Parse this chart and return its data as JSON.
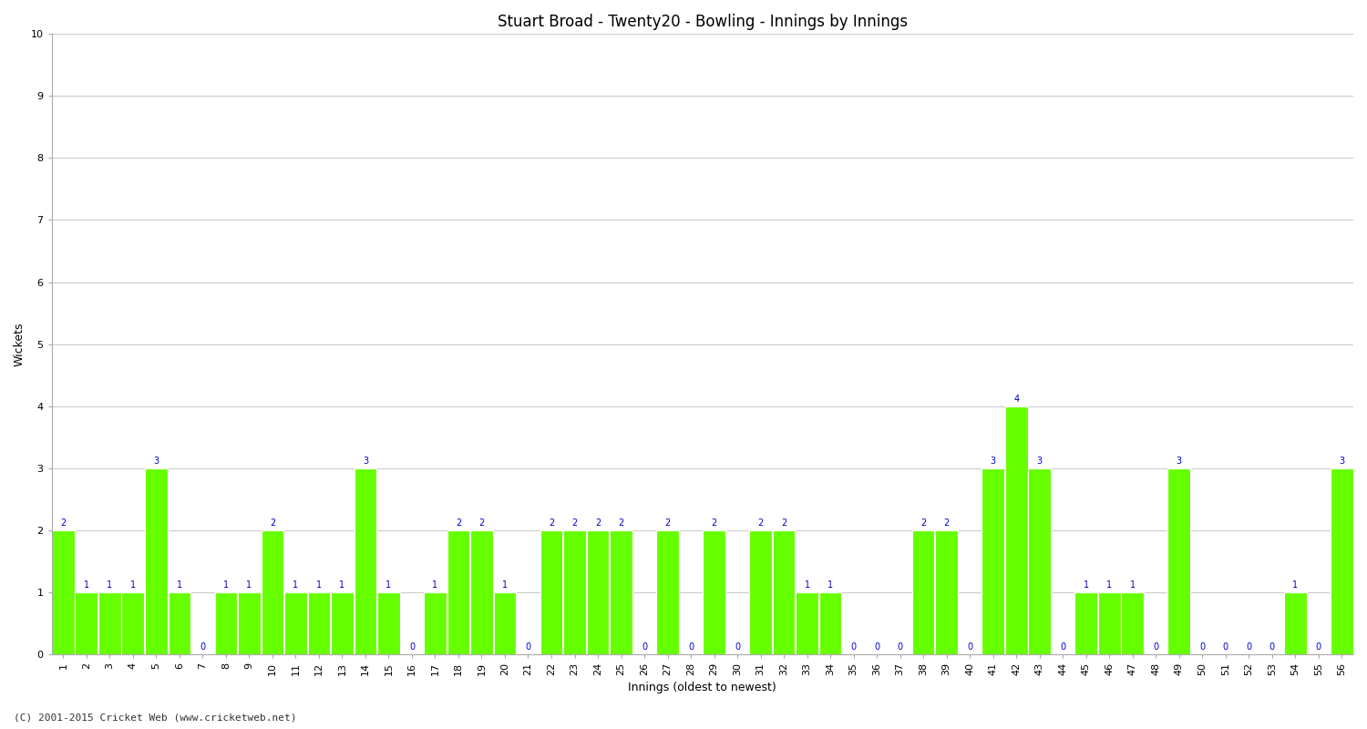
{
  "title": "Stuart Broad - Twenty20 - Bowling - Innings by Innings",
  "xlabel": "Innings (oldest to newest)",
  "ylabel": "Wickets",
  "ylim": [
    0,
    10
  ],
  "bar_color": "#66ff00",
  "bar_edge_color": "#ffffff",
  "label_color": "#0000cc",
  "background_color": "#ffffff",
  "grid_color": "#cccccc",
  "innings": [
    1,
    2,
    3,
    4,
    5,
    6,
    7,
    8,
    9,
    10,
    11,
    12,
    13,
    14,
    15,
    16,
    17,
    18,
    19,
    20,
    21,
    22,
    23,
    24,
    25,
    26,
    27,
    28,
    29,
    30,
    31,
    32,
    33,
    34,
    35,
    36,
    37,
    38,
    39,
    40,
    41,
    42,
    43,
    44,
    45,
    46,
    47,
    48,
    49,
    50,
    51,
    52,
    53,
    54,
    55,
    56
  ],
  "wickets": [
    2,
    1,
    1,
    1,
    3,
    1,
    0,
    1,
    1,
    2,
    1,
    1,
    1,
    3,
    1,
    0,
    1,
    2,
    2,
    1,
    0,
    2,
    2,
    2,
    2,
    0,
    2,
    0,
    2,
    0,
    2,
    2,
    1,
    1,
    0,
    0,
    0,
    2,
    2,
    0,
    3,
    4,
    3,
    0,
    1,
    1,
    1,
    0,
    3,
    0,
    0,
    0,
    0,
    1,
    0,
    3
  ],
  "yticks": [
    0,
    1,
    2,
    3,
    4,
    5,
    6,
    7,
    8,
    9,
    10
  ],
  "title_fontsize": 12,
  "axis_fontsize": 9,
  "label_fontsize": 7,
  "tick_fontsize": 8,
  "bar_width": 0.97,
  "copyright": "(C) 2001-2015 Cricket Web (www.cricketweb.net)"
}
